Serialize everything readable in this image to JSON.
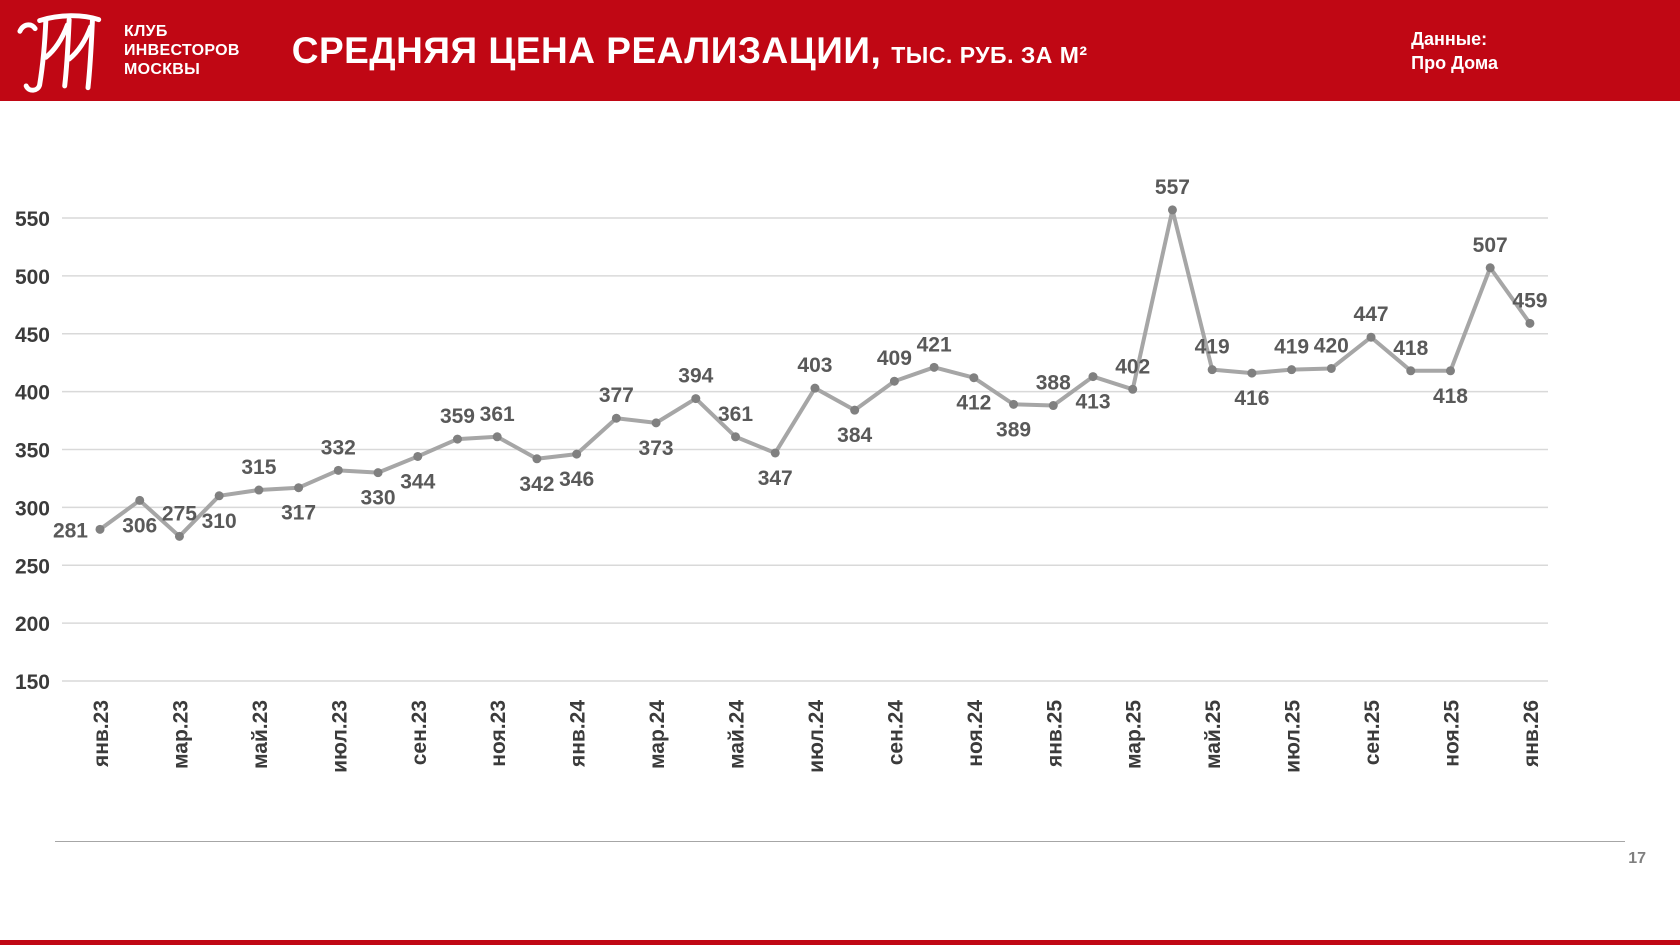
{
  "header": {
    "logo_text_lines": [
      "КЛУБ",
      "ИНВЕСТОРОВ",
      "МОСКВЫ"
    ],
    "title": "СРЕДНЯЯ ЦЕНА РЕАЛИЗАЦИИ,",
    "title_suffix": "ТЫС. РУБ. ЗА М²",
    "source_label": "Данные:",
    "source_value": "Про Дома",
    "background_color": "#c00714"
  },
  "footer": {
    "page_number": "17"
  },
  "chart_data": {
    "type": "line",
    "title": "СРЕДНЯЯ ЦЕНА РЕАЛИЗАЦИИ, ТЫС. РУБ. ЗА М²",
    "xlabel": "",
    "ylabel": "тыс. руб. за м²",
    "x": [
      "янв.23",
      "фев.23",
      "мар.23",
      "апр.23",
      "май.23",
      "июн.23",
      "июл.23",
      "авг.23",
      "сен.23",
      "окт.23",
      "ноя.23",
      "дек.23",
      "янв.24",
      "фев.24",
      "мар.24",
      "апр.24",
      "май.24",
      "июн.24",
      "июл.24",
      "авг.24",
      "сен.24",
      "окт.24",
      "ноя.24",
      "дек.24",
      "янв.25",
      "фев.25",
      "мар.25",
      "апр.25",
      "май.25",
      "июн.25",
      "июл.25",
      "авг.25",
      "сен.25",
      "окт.25",
      "ноя.25",
      "дек.25",
      "янв.26"
    ],
    "x_axis_shown_labels": [
      "янв.23",
      "мар.23",
      "май.23",
      "июл.23",
      "сен.23",
      "ноя.23",
      "янв.24",
      "мар.24",
      "май.24",
      "июл.24",
      "сен.24",
      "ноя.24",
      "янв.25",
      "мар.25",
      "май.25",
      "июл.25",
      "сен.25",
      "ноя.25",
      "янв.26"
    ],
    "values": [
      281,
      306,
      275,
      310,
      315,
      317,
      332,
      330,
      344,
      359,
      361,
      342,
      346,
      377,
      373,
      394,
      361,
      347,
      403,
      384,
      409,
      421,
      412,
      389,
      388,
      413,
      402,
      557,
      419,
      416,
      419,
      420,
      447,
      418,
      418,
      507,
      459
    ],
    "label_positions": [
      "left",
      "below",
      "above",
      "below",
      "above",
      "below",
      "above",
      "below",
      "below",
      "above",
      "above",
      "below",
      "below",
      "above",
      "below",
      "above",
      "above",
      "below",
      "above",
      "below",
      "above",
      "above",
      "below",
      "below",
      "above",
      "below",
      "above",
      "above",
      "above",
      "below",
      "above",
      "above",
      "above",
      "above",
      "below",
      "above",
      "above"
    ],
    "y_ticks": [
      150,
      200,
      250,
      300,
      350,
      400,
      450,
      500,
      550
    ],
    "ylim": [
      150,
      600
    ],
    "grid": true,
    "legend": "none",
    "line_color": "#a6a6a6",
    "marker_color": "#808080",
    "label_color": "#595959",
    "axis_label_color": "#3b3b3b",
    "grid_color": "#d9d9d9"
  }
}
